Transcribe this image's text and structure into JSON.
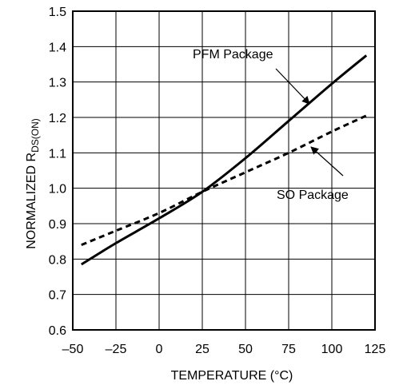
{
  "chart_data": {
    "type": "line",
    "xlabel": "TEMPERATURE (°C)",
    "ylabel_main": "NORMALIZED R",
    "ylabel_sub": "DS(ON)",
    "xlim": [
      -50,
      125
    ],
    "ylim": [
      0.6,
      1.5
    ],
    "x_ticks": [
      "–50",
      "–25",
      "0",
      "25",
      "50",
      "75",
      "100",
      "125"
    ],
    "x_tick_values": [
      -50,
      -25,
      0,
      25,
      50,
      75,
      100,
      125
    ],
    "y_ticks": [
      "0.6",
      "0.7",
      "0.8",
      "0.9",
      "1.0",
      "1.1",
      "1.2",
      "1.3",
      "1.4",
      "1.5"
    ],
    "y_tick_values": [
      0.6,
      0.7,
      0.8,
      0.9,
      1.0,
      1.1,
      1.2,
      1.3,
      1.4,
      1.5
    ],
    "grid": true,
    "series": [
      {
        "name": "PFM Package",
        "style": "solid",
        "x": [
          -45,
          -25,
          0,
          25,
          50,
          75,
          100,
          120
        ],
        "y": [
          0.785,
          0.845,
          0.915,
          0.99,
          1.085,
          1.19,
          1.295,
          1.375
        ]
      },
      {
        "name": "SO Package",
        "style": "dashed",
        "x": [
          -45,
          -25,
          0,
          25,
          50,
          75,
          100,
          120
        ],
        "y": [
          0.84,
          0.88,
          0.93,
          0.99,
          1.045,
          1.1,
          1.16,
          1.205
        ]
      }
    ],
    "annotations": [
      {
        "text": "PFM Package",
        "series": 0
      },
      {
        "text": "SO Package",
        "series": 1
      }
    ]
  }
}
